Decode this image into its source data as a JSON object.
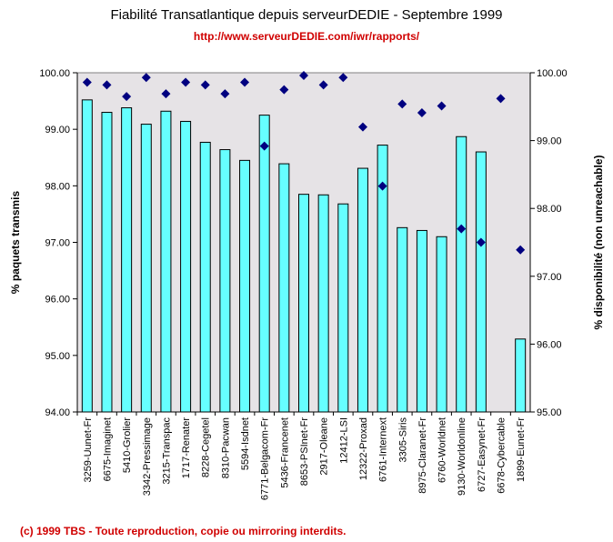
{
  "header": {
    "title": "Fiabilité Transatlantique depuis serveurDEDIE - Septembre 1999",
    "url": "http://www.serveurDEDIE.com/iwr/rapports/"
  },
  "footer": "(c) 1999 TBS - Toute reproduction, copie ou mirroring interdits.",
  "chart_data": {
    "type": "bar",
    "title": "Fiabilité Transatlantique depuis serveurDEDIE - Septembre 1999",
    "ylabel": "% paquets transmis",
    "y2label": "% disponibilité (non unreachable)",
    "ylim": [
      94,
      100
    ],
    "y2lim": [
      95,
      100
    ],
    "yticks": [
      "94.00",
      "95.00",
      "96.00",
      "97.00",
      "98.00",
      "99.00",
      "100.00"
    ],
    "y2ticks": [
      "95.00",
      "96.00",
      "97.00",
      "98.00",
      "99.00",
      "100.00"
    ],
    "grid": false,
    "plot_background": "#e6e3e6",
    "categories": [
      "3259-Uunet-Fr",
      "6675-Imaginet",
      "5410-Grolier",
      "3342-Pressimage",
      "3215-Transpac",
      "1717-Renater",
      "8228-Cegetel",
      "8310-Pacwan",
      "5594-Isdnet",
      "6771-Belgacom-Fr",
      "5436-Francenet",
      "8653-PSInet-Fr",
      "2917-Oleane",
      "12412-LSI",
      "12322-Proxad",
      "6761-Internext",
      "3305-Siris",
      "8975-Claranet-Fr",
      "6760-Worldnet",
      "9130-Worldonline",
      "6727-Easynet-Fr",
      "6678-Cybercable",
      "1899-Eunet-Fr"
    ],
    "series": [
      {
        "type": "bar",
        "axis": "left",
        "color": "#66ffff",
        "values": [
          99.52,
          99.3,
          99.38,
          99.09,
          99.32,
          99.14,
          98.77,
          98.64,
          98.45,
          99.25,
          98.39,
          97.85,
          97.84,
          97.68,
          98.31,
          98.72,
          97.26,
          97.21,
          97.1,
          98.87,
          98.6,
          null,
          95.29
        ]
      },
      {
        "type": "scatter",
        "axis": "right",
        "marker": "diamond",
        "color": "#000080",
        "values": [
          99.86,
          99.82,
          99.65,
          99.93,
          99.69,
          99.86,
          99.82,
          99.69,
          99.86,
          98.92,
          99.75,
          99.96,
          99.82,
          99.93,
          99.2,
          98.33,
          99.54,
          99.41,
          99.51,
          97.7,
          97.5,
          99.62,
          97.39
        ]
      }
    ]
  }
}
